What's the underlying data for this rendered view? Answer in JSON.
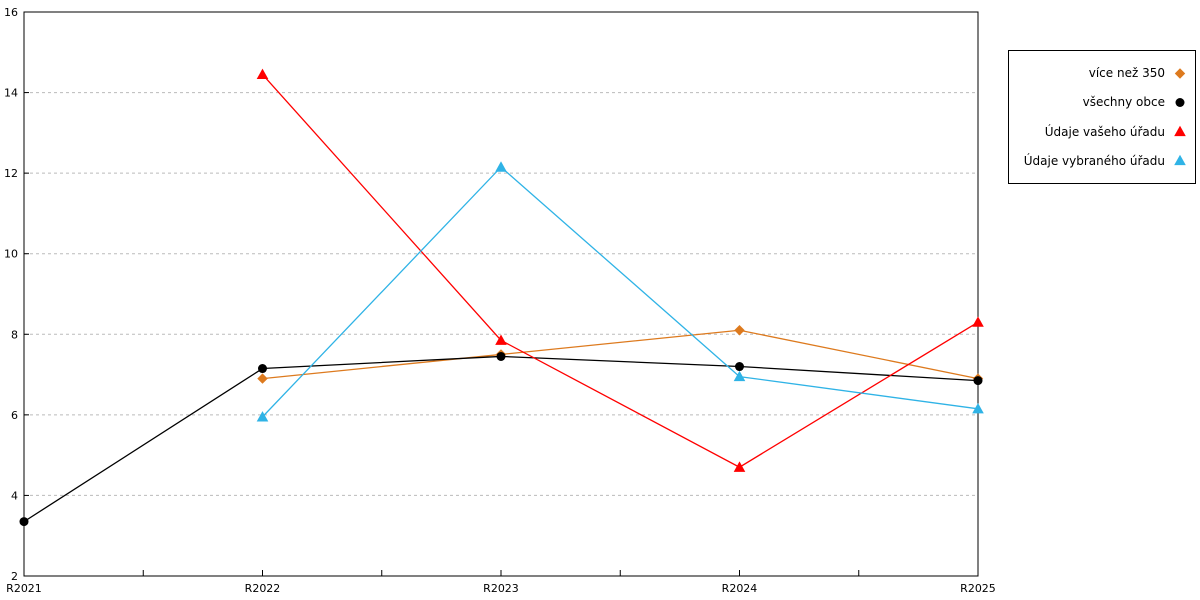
{
  "chart_data": {
    "type": "line",
    "title": "",
    "xlabel": "",
    "ylabel": "",
    "categories": [
      "R2021",
      "R2022",
      "R2023",
      "R2024",
      "R2025"
    ],
    "series": [
      {
        "name": "více než 350",
        "marker": "diamond",
        "color": "#DD7A1E",
        "values": [
          null,
          6.9,
          7.5,
          8.1,
          6.9
        ]
      },
      {
        "name": "všechny obce",
        "marker": "circle",
        "color": "#000000",
        "values": [
          3.35,
          7.15,
          7.45,
          7.2,
          6.85
        ]
      },
      {
        "name": "Údaje vašeho úřadu",
        "marker": "triangle",
        "color": "#FF0000",
        "values": [
          null,
          14.45,
          7.85,
          4.7,
          8.3
        ]
      },
      {
        "name": "Údaje vybraného úřadu",
        "marker": "triangle",
        "color": "#2FB3E6",
        "values": [
          null,
          5.95,
          12.15,
          6.95,
          6.15
        ]
      }
    ],
    "ylim": [
      2,
      16
    ],
    "ytick_step": 2,
    "yticks": [
      2,
      4,
      6,
      8,
      10,
      12,
      14,
      16
    ],
    "grid": true,
    "gridline_color": "#bbbbbb",
    "axis_color": "#000000",
    "legend_position": "outside-right"
  }
}
